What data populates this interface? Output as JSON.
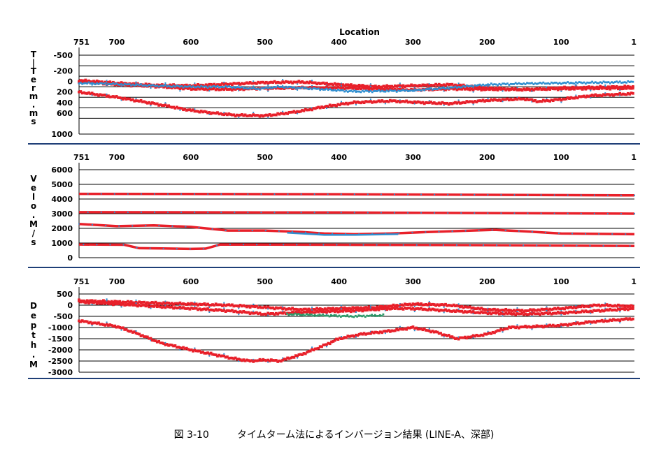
{
  "location_label": "Location",
  "caption": {
    "figure_no": "図 3-10",
    "text": "タイムターム法によるインバージョン結果 (LINE-A、深部)"
  },
  "colors": {
    "series_red": "#e8202a",
    "series_blue": "#2f8fd0",
    "series_green": "#2e9a6a",
    "grid": "#000000",
    "divider": "#1f3f77"
  },
  "chart_data": [
    {
      "id": "time-term",
      "type": "scatter",
      "ylabel_chars": [
        "T",
        "|",
        "T",
        "e",
        "r",
        "m",
        ".",
        "m",
        "s"
      ],
      "x_ticks": [
        "751",
        "700",
        "600",
        "500",
        "400",
        "300",
        "200",
        "100",
        "1"
      ],
      "xlim": [
        751,
        1
      ],
      "ylim": [
        1000,
        -500
      ],
      "y_ticks": [
        "-500",
        "-200",
        "0",
        "200",
        "400",
        "600",
        "1000"
      ],
      "grid_values": [
        -500,
        -300,
        -100,
        100,
        300,
        500,
        700,
        1000
      ],
      "series": [
        {
          "color": "red",
          "values": [
            [
              751,
              -20
            ],
            [
              700,
              30
            ],
            [
              650,
              70
            ],
            [
              600,
              80
            ],
            [
              550,
              50
            ],
            [
              500,
              20
            ],
            [
              450,
              10
            ],
            [
              400,
              60
            ],
            [
              350,
              100
            ],
            [
              300,
              80
            ],
            [
              250,
              60
            ],
            [
              200,
              120
            ],
            [
              150,
              160
            ],
            [
              100,
              120
            ],
            [
              50,
              110
            ],
            [
              1,
              100
            ]
          ]
        },
        {
          "color": "red",
          "values": [
            [
              751,
              0
            ],
            [
              700,
              60
            ],
            [
              650,
              90
            ],
            [
              600,
              140
            ],
            [
              550,
              150
            ],
            [
              500,
              130
            ],
            [
              450,
              120
            ],
            [
              400,
              120
            ],
            [
              350,
              140
            ],
            [
              300,
              160
            ],
            [
              250,
              140
            ],
            [
              200,
              150
            ],
            [
              150,
              150
            ],
            [
              100,
              140
            ],
            [
              50,
              130
            ],
            [
              1,
              130
            ]
          ]
        },
        {
          "color": "blue",
          "values": [
            [
              751,
              30
            ],
            [
              700,
              50
            ],
            [
              650,
              80
            ],
            [
              600,
              100
            ],
            [
              550,
              100
            ],
            [
              510,
              140
            ],
            [
              480,
              100
            ],
            [
              420,
              150
            ],
            [
              380,
              190
            ],
            [
              330,
              180
            ],
            [
              300,
              170
            ],
            [
              250,
              120
            ],
            [
              200,
              60
            ],
            [
              150,
              40
            ],
            [
              100,
              30
            ],
            [
              1,
              10
            ]
          ]
        },
        {
          "color": "red",
          "values": [
            [
              751,
              200
            ],
            [
              700,
              300
            ],
            [
              650,
              420
            ],
            [
              600,
              550
            ],
            [
              570,
              600
            ],
            [
              540,
              640
            ],
            [
              500,
              650
            ],
            [
              480,
              620
            ],
            [
              450,
              560
            ],
            [
              420,
              480
            ],
            [
              380,
              400
            ],
            [
              330,
              370
            ],
            [
              290,
              400
            ],
            [
              250,
              420
            ],
            [
              200,
              360
            ],
            [
              150,
              330
            ],
            [
              130,
              380
            ],
            [
              100,
              340
            ],
            [
              60,
              270
            ],
            [
              1,
              230
            ]
          ]
        }
      ]
    },
    {
      "id": "velocity",
      "type": "line",
      "ylabel_chars": [
        "V",
        "e",
        "l",
        "o",
        ".",
        "M",
        "/",
        "s"
      ],
      "x_ticks": [
        "751",
        "700",
        "600",
        "500",
        "400",
        "300",
        "200",
        "100",
        "1"
      ],
      "xlim": [
        751,
        1
      ],
      "ylim": [
        0,
        6000
      ],
      "y_ticks": [
        "6000",
        "5000",
        "4000",
        "3000",
        "2000",
        "1000",
        "0"
      ],
      "grid_values": [
        5000,
        4000,
        3000,
        2000,
        1000
      ],
      "series": [
        {
          "color": "red",
          "values": [
            [
              751,
              4350
            ],
            [
              400,
              4330
            ],
            [
              1,
              4250
            ]
          ]
        },
        {
          "color": "red",
          "values": [
            [
              751,
              3100
            ],
            [
              400,
              3080
            ],
            [
              1,
              3000
            ]
          ]
        },
        {
          "color": "red",
          "values": [
            [
              751,
              2300
            ],
            [
              700,
              2150
            ],
            [
              650,
              2200
            ],
            [
              600,
              2100
            ],
            [
              550,
              1850
            ],
            [
              500,
              1850
            ],
            [
              450,
              1750
            ],
            [
              420,
              1650
            ],
            [
              380,
              1600
            ],
            [
              330,
              1650
            ],
            [
              280,
              1750
            ],
            [
              220,
              1850
            ],
            [
              190,
              1900
            ],
            [
              150,
              1800
            ],
            [
              100,
              1650
            ],
            [
              1,
              1600
            ]
          ]
        },
        {
          "color": "blue",
          "values": [
            [
              470,
              1700
            ],
            [
              420,
              1550
            ],
            [
              380,
              1550
            ],
            [
              320,
              1600
            ]
          ]
        },
        {
          "color": "red",
          "values": [
            [
              751,
              900
            ],
            [
              690,
              880
            ],
            [
              670,
              650
            ],
            [
              640,
              630
            ],
            [
              600,
              600
            ],
            [
              580,
              620
            ],
            [
              560,
              900
            ],
            [
              400,
              880
            ],
            [
              200,
              850
            ],
            [
              1,
              800
            ]
          ]
        }
      ]
    },
    {
      "id": "depth",
      "type": "scatter",
      "ylabel_chars": [
        "D",
        "e",
        "p",
        "t",
        "h",
        ".",
        "M"
      ],
      "x_ticks": [
        "751",
        "700",
        "600",
        "500",
        "400",
        "300",
        "200",
        "100",
        "1"
      ],
      "xlim": [
        751,
        1
      ],
      "ylim": [
        -3000,
        500
      ],
      "y_ticks": [
        "500",
        "0",
        "-500",
        "-1000",
        "-1500",
        "-2000",
        "-2500",
        "-3000"
      ],
      "grid_values": [
        0,
        -500,
        -1000,
        -1500,
        -2000,
        -2500
      ],
      "series": [
        {
          "color": "red",
          "values": [
            [
              751,
              200
            ],
            [
              700,
              150
            ],
            [
              650,
              100
            ],
            [
              600,
              50
            ],
            [
              550,
              0
            ],
            [
              500,
              -100
            ],
            [
              450,
              -200
            ],
            [
              400,
              -150
            ],
            [
              350,
              -100
            ],
            [
              300,
              50
            ],
            [
              250,
              0
            ],
            [
              200,
              -200
            ],
            [
              150,
              -250
            ],
            [
              100,
              -150
            ],
            [
              50,
              0
            ],
            [
              1,
              -50
            ]
          ]
        },
        {
          "color": "red",
          "values": [
            [
              751,
              150
            ],
            [
              700,
              50
            ],
            [
              650,
              -50
            ],
            [
              600,
              -150
            ],
            [
              550,
              -250
            ],
            [
              500,
              -400
            ],
            [
              470,
              -350
            ],
            [
              430,
              -300
            ],
            [
              380,
              -250
            ],
            [
              330,
              -150
            ],
            [
              300,
              -150
            ],
            [
              250,
              -250
            ],
            [
              200,
              -350
            ],
            [
              150,
              -400
            ],
            [
              100,
              -350
            ],
            [
              50,
              -250
            ],
            [
              1,
              -150
            ]
          ]
        },
        {
          "color": "green",
          "values": [
            [
              470,
              -400
            ],
            [
              430,
              -450
            ],
            [
              380,
              -500
            ],
            [
              340,
              -450
            ]
          ]
        },
        {
          "color": "red",
          "values": [
            [
              751,
              -700
            ],
            [
              700,
              -950
            ],
            [
              670,
              -1300
            ],
            [
              640,
              -1700
            ],
            [
              600,
              -2000
            ],
            [
              570,
              -2200
            ],
            [
              540,
              -2400
            ],
            [
              520,
              -2500
            ],
            [
              500,
              -2450
            ],
            [
              480,
              -2500
            ],
            [
              450,
              -2200
            ],
            [
              420,
              -1800
            ],
            [
              400,
              -1500
            ],
            [
              370,
              -1300
            ],
            [
              330,
              -1150
            ],
            [
              300,
              -1000
            ],
            [
              270,
              -1200
            ],
            [
              240,
              -1500
            ],
            [
              200,
              -1300
            ],
            [
              170,
              -1000
            ],
            [
              130,
              -950
            ],
            [
              100,
              -900
            ],
            [
              60,
              -750
            ],
            [
              1,
              -600
            ]
          ]
        }
      ]
    }
  ]
}
